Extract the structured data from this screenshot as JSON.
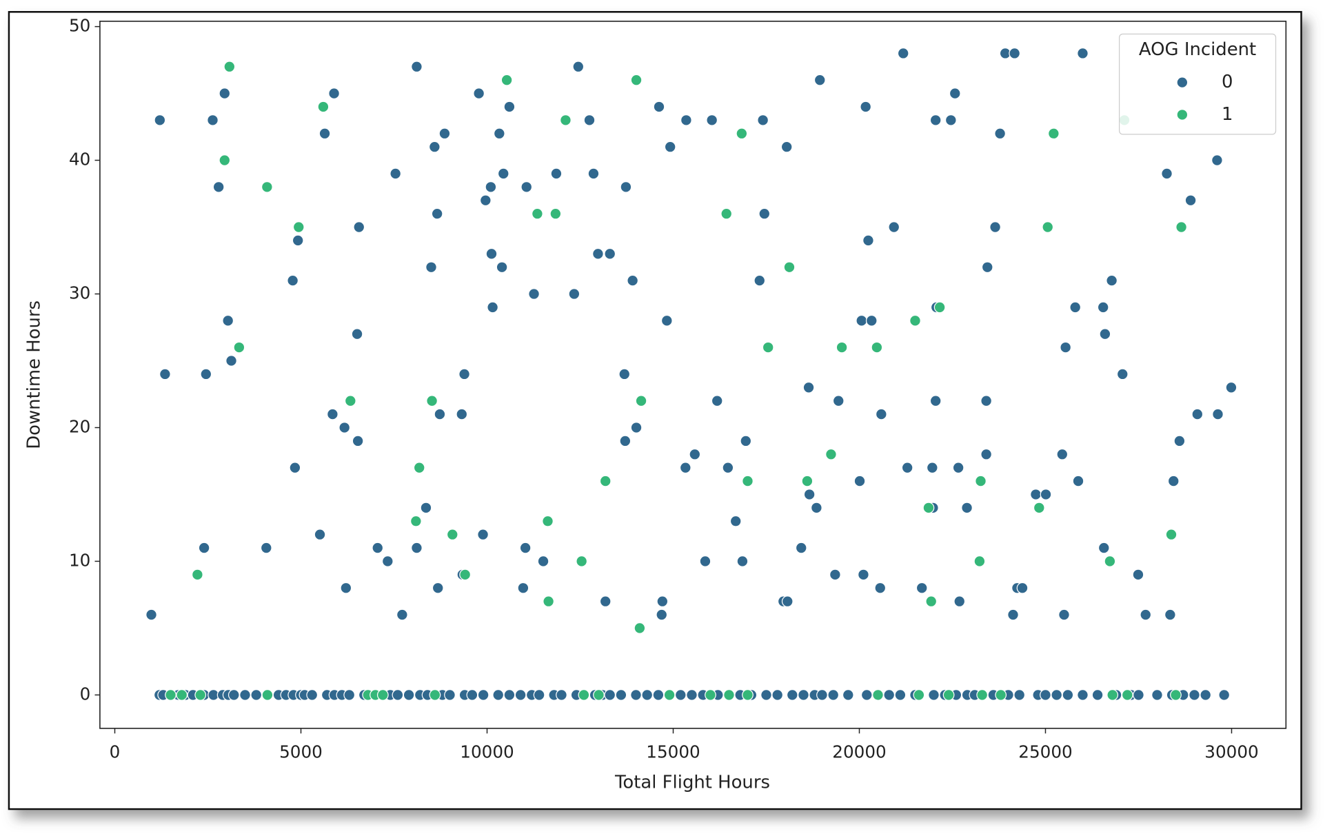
{
  "chart_data": {
    "type": "scatter",
    "xlabel": "Total Flight Hours",
    "ylabel": "Downtime Hours",
    "legend_title": "AOG Incident",
    "legend": "upper right",
    "xlim": [
      -400,
      31460
    ],
    "ylim": [
      -2.5,
      50.4
    ],
    "xticks": [
      0,
      5000,
      10000,
      15000,
      20000,
      25000,
      30000
    ],
    "yticks": [
      0,
      10,
      20,
      30,
      40,
      50
    ],
    "series": [
      {
        "name": "0",
        "color": "#31688e",
        "x": [
          982,
          1210,
          1350,
          2400,
          2450,
          2630,
          2790,
          2950,
          3040,
          3130,
          4070,
          4780,
          4840,
          4920,
          5510,
          5640,
          5850,
          5890,
          6170,
          6210,
          6510,
          6530,
          6560,
          7060,
          7330,
          7540,
          7720,
          8110,
          8110,
          8360,
          8500,
          8590,
          8660,
          8680,
          8730,
          8860,
          9320,
          9390,
          9340,
          9780,
          9890,
          9960,
          10100,
          10120,
          10150,
          10330,
          10400,
          10440,
          10600,
          10970,
          11030,
          11060,
          11260,
          11510,
          11860,
          12340,
          12450,
          12750,
          12860,
          12980,
          13180,
          13300,
          13690,
          13710,
          13730,
          13910,
          14010,
          14620,
          14690,
          14710,
          14830,
          14920,
          15330,
          15350,
          15580,
          15860,
          16040,
          16180,
          16470,
          16680,
          16860,
          16950,
          17320,
          17410,
          17450,
          17960,
          18050,
          18070,
          18440,
          18640,
          18660,
          18850,
          18940,
          19350,
          19440,
          20010,
          20060,
          20110,
          20170,
          20240,
          20330,
          20560,
          20590,
          20930,
          21180,
          21290,
          21680,
          21960,
          21980,
          22050,
          22050,
          22070,
          22460,
          22570,
          22660,
          22690,
          22890,
          23410,
          23410,
          23440,
          23650,
          23780,
          23920,
          24130,
          24170,
          24240,
          24380,
          24740,
          25010,
          25450,
          25500,
          25540,
          25800,
          25880,
          26000,
          26550,
          26570,
          26600,
          26780,
          27070,
          27490,
          27690,
          28260,
          28350,
          28440,
          28600,
          28900,
          29080,
          29610,
          29630,
          29990,
          1200,
          1300,
          1700,
          1900,
          2100,
          2400,
          2650,
          2900,
          3050,
          3200,
          3500,
          3800,
          4400,
          4600,
          4800,
          5000,
          5100,
          5300,
          5700,
          5900,
          6100,
          6300,
          6700,
          7400,
          7600,
          7900,
          8200,
          8400,
          8800,
          9000,
          9400,
          9600,
          9900,
          10300,
          10600,
          10900,
          11200,
          11400,
          11800,
          12000,
          12400,
          12900,
          13100,
          13300,
          13600,
          14000,
          14300,
          14600,
          15200,
          15500,
          15800,
          16200,
          16800,
          17100,
          17500,
          17800,
          18200,
          18500,
          18800,
          19000,
          19300,
          19700,
          20200,
          20800,
          21100,
          21500,
          22000,
          22300,
          22600,
          22900,
          23100,
          23600,
          24000,
          24300,
          24800,
          25000,
          25300,
          25600,
          26000,
          26400,
          26900,
          27300,
          27500,
          28000,
          28400,
          28700,
          29000,
          29300,
          29800
        ],
        "values": [
          6,
          43,
          24,
          11,
          24,
          43,
          38,
          45,
          28,
          25,
          11,
          31,
          17,
          34,
          12,
          42,
          21,
          45,
          20,
          8,
          27,
          19,
          35,
          11,
          10,
          39,
          6,
          11,
          47,
          14,
          32,
          41,
          36,
          8,
          21,
          42,
          21,
          24,
          9,
          45,
          12,
          37,
          38,
          33,
          29,
          42,
          32,
          39,
          44,
          8,
          11,
          38,
          30,
          10,
          39,
          30,
          47,
          43,
          39,
          33,
          7,
          33,
          24,
          19,
          38,
          31,
          20,
          44,
          6,
          7,
          28,
          41,
          17,
          43,
          18,
          10,
          43,
          22,
          17,
          13,
          10,
          19,
          31,
          43,
          36,
          7,
          41,
          7,
          11,
          23,
          15,
          14,
          46,
          9,
          22,
          16,
          28,
          9,
          44,
          34,
          28,
          8,
          21,
          35,
          48,
          17,
          8,
          17,
          14,
          43,
          22,
          29,
          43,
          45,
          17,
          7,
          14,
          18,
          22,
          32,
          35,
          42,
          48,
          6,
          48,
          8,
          8,
          15,
          15,
          18,
          6,
          26,
          29,
          16,
          48,
          29,
          11,
          27,
          31,
          24,
          9,
          6,
          39,
          6,
          16,
          19,
          37,
          21,
          40,
          21,
          23,
          0,
          0,
          0,
          0,
          0,
          0,
          0,
          0,
          0,
          0,
          0,
          0,
          0,
          0,
          0,
          0,
          0,
          0,
          0,
          0,
          0,
          0,
          0,
          0,
          0,
          0,
          0,
          0,
          0,
          0,
          0,
          0,
          0,
          0,
          0,
          0,
          0,
          0,
          0,
          0,
          0,
          0,
          0,
          0,
          0,
          0,
          0,
          0,
          0,
          0,
          0,
          0,
          0,
          0,
          0,
          0,
          0,
          0,
          0,
          0,
          0,
          0,
          0,
          0,
          0,
          0,
          0,
          0,
          0,
          0,
          0,
          0,
          0,
          0,
          0,
          0,
          0,
          0,
          0,
          0,
          0,
          0,
          0,
          0,
          0,
          0,
          0,
          0,
          0
        ]
      },
      {
        "name": "1",
        "color": "#35b779",
        "x": [
          2220,
          2950,
          3080,
          3340,
          4090,
          4940,
          5600,
          6330,
          8090,
          8180,
          8520,
          9070,
          9410,
          10530,
          11350,
          11630,
          11650,
          11840,
          12110,
          12540,
          13180,
          14010,
          14100,
          14140,
          16430,
          16840,
          17000,
          17550,
          18120,
          18600,
          19240,
          19530,
          20470,
          21500,
          21860,
          21930,
          22160,
          23230,
          23260,
          24830,
          25060,
          25220,
          26730,
          27120,
          28380,
          28650,
          1500,
          1800,
          2300,
          4100,
          6800,
          7000,
          7200,
          8600,
          12600,
          13000,
          14900,
          16000,
          16500,
          17000,
          20500,
          21600,
          22400,
          23300,
          23800,
          26800,
          27200,
          28500
        ],
        "values": [
          9,
          40,
          47,
          26,
          38,
          35,
          44,
          22,
          13,
          17,
          22,
          12,
          9,
          46,
          36,
          13,
          7,
          36,
          43,
          10,
          16,
          46,
          5,
          22,
          36,
          42,
          16,
          26,
          32,
          16,
          18,
          26,
          26,
          28,
          14,
          7,
          29,
          10,
          16,
          14,
          35,
          42,
          10,
          43,
          12,
          35,
          0,
          0,
          0,
          0,
          0,
          0,
          0,
          0,
          0,
          0,
          0,
          0,
          0,
          0,
          0,
          0,
          0,
          0,
          0,
          0,
          0,
          0
        ]
      }
    ]
  }
}
